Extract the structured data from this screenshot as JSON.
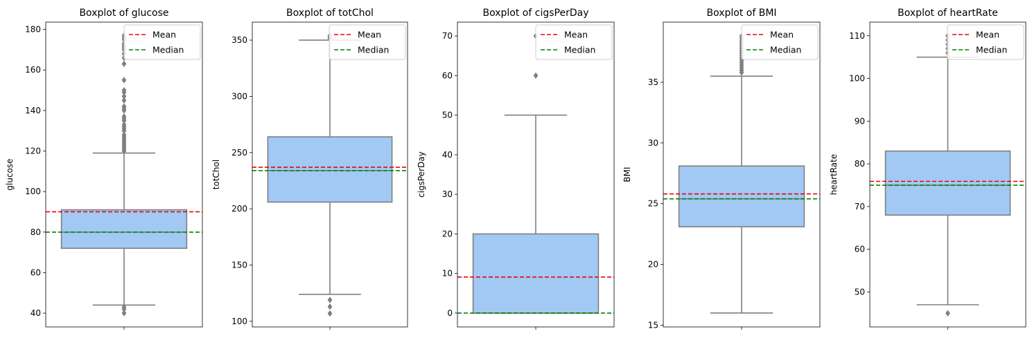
{
  "chart_data": [
    {
      "type": "box",
      "title": "Boxplot of glucose",
      "ylabel": "glucose",
      "ylim": [
        33.2,
        183.6
      ],
      "yticks": [
        40,
        60,
        80,
        100,
        120,
        140,
        160,
        180
      ],
      "box": {
        "whisker_low": 44,
        "q1": 72,
        "median": 80,
        "q3": 91,
        "whisker_high": 119
      },
      "mean": 90,
      "median_line": 80,
      "outliers": [
        40,
        42,
        43,
        120,
        121,
        122,
        123,
        124,
        125,
        126,
        127,
        128,
        130,
        131,
        132,
        133,
        135,
        136,
        137,
        140,
        141,
        142,
        145,
        147,
        149,
        150,
        155,
        163,
        166,
        168,
        170,
        171,
        172,
        173,
        175,
        176,
        177
      ],
      "legend": {
        "position": "top-right",
        "entries": [
          "Mean",
          "Median"
        ]
      }
    },
    {
      "type": "box",
      "title": "Boxplot of totChol",
      "ylabel": "totChol",
      "ylim": [
        95,
        366
      ],
      "yticks": [
        100,
        150,
        200,
        250,
        300,
        350
      ],
      "box": {
        "whisker_low": 124,
        "q1": 206,
        "median": 234,
        "q3": 264,
        "whisker_high": 350
      },
      "mean": 237,
      "median_line": 234,
      "outliers": [
        107,
        113,
        119,
        351,
        352,
        353,
        354
      ],
      "legend": {
        "position": "top-right",
        "entries": [
          "Mean",
          "Median"
        ]
      }
    },
    {
      "type": "box",
      "title": "Boxplot of cigsPerDay",
      "ylabel": "cigsPerDay",
      "ylim": [
        -3.5,
        73.5
      ],
      "yticks": [
        0,
        10,
        20,
        30,
        40,
        50,
        60,
        70
      ],
      "box": {
        "whisker_low": 0,
        "q1": 0,
        "median": 0,
        "q3": 20,
        "whisker_high": 50
      },
      "mean": 9.1,
      "median_line": 0,
      "outliers": [
        60,
        70
      ],
      "legend": {
        "position": "top-right",
        "entries": [
          "Mean",
          "Median"
        ]
      }
    },
    {
      "type": "box",
      "title": "Boxplot of BMI",
      "ylabel": "BMI",
      "ylim": [
        14.85,
        39.95
      ],
      "yticks": [
        15,
        20,
        25,
        30,
        35
      ],
      "box": {
        "whisker_low": 16,
        "q1": 23.1,
        "median": 25.4,
        "q3": 28.1,
        "whisker_high": 35.5
      },
      "mean": 25.8,
      "median_line": 25.4,
      "outliers": [
        35.8,
        36.0,
        36.2,
        36.4,
        36.6,
        36.8,
        37.0,
        37.2,
        37.4,
        37.6,
        37.8,
        38.0,
        38.2,
        38.4,
        38.6,
        38.8
      ],
      "legend": {
        "position": "top-right",
        "entries": [
          "Mean",
          "Median"
        ]
      }
    },
    {
      "type": "box",
      "title": "Boxplot of heartRate",
      "ylabel": "heartRate",
      "ylim": [
        41.8,
        113.2
      ],
      "yticks": [
        50,
        60,
        70,
        80,
        90,
        100,
        110
      ],
      "box": {
        "whisker_low": 47,
        "q1": 68,
        "median": 75,
        "q3": 83,
        "whisker_high": 105
      },
      "mean": 75.9,
      "median_line": 75,
      "outliers": [
        45,
        106,
        107,
        108,
        109,
        110
      ],
      "legend": {
        "position": "top-right",
        "entries": [
          "Mean",
          "Median"
        ]
      }
    }
  ],
  "colors": {
    "box_fill": "#a1c9f4",
    "box_edge": "#7f7f7f",
    "mean_line": "#e8000b",
    "median_line": "#008000",
    "axes": "#000000",
    "legend_border": "#cccccc"
  }
}
